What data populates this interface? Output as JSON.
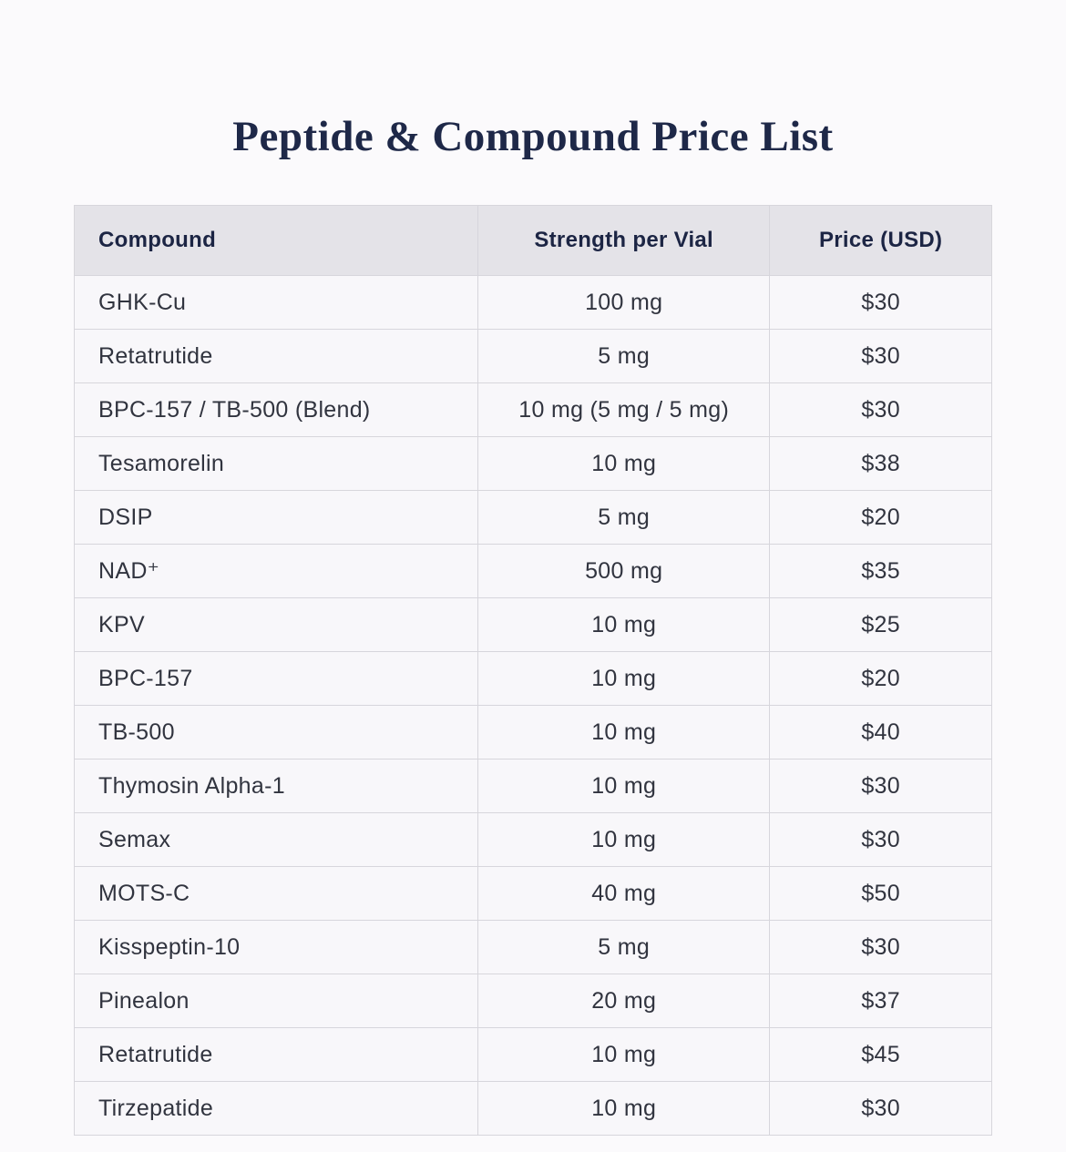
{
  "page": {
    "title": "Peptide & Compound Price List"
  },
  "table": {
    "columns": [
      "Compound",
      "Strength per Vial",
      "Price (USD)"
    ],
    "rows": [
      {
        "compound": "GHK-Cu",
        "strength": "100 mg",
        "price": "$30"
      },
      {
        "compound": "Retatrutide",
        "strength": "5 mg",
        "price": "$30"
      },
      {
        "compound": "BPC-157 / TB-500 (Blend)",
        "strength": "10 mg (5 mg / 5 mg)",
        "price": "$30"
      },
      {
        "compound": "Tesamorelin",
        "strength": "10 mg",
        "price": "$38"
      },
      {
        "compound": "DSIP",
        "strength": "5 mg",
        "price": "$20"
      },
      {
        "compound": "NAD⁺",
        "strength": "500 mg",
        "price": "$35"
      },
      {
        "compound": "KPV",
        "strength": "10 mg",
        "price": "$25"
      },
      {
        "compound": "BPC-157",
        "strength": "10 mg",
        "price": "$20"
      },
      {
        "compound": "TB-500",
        "strength": "10 mg",
        "price": "$40"
      },
      {
        "compound": "Thymosin Alpha-1",
        "strength": "10 mg",
        "price": "$30"
      },
      {
        "compound": "Semax",
        "strength": "10 mg",
        "price": "$30"
      },
      {
        "compound": "MOTS-C",
        "strength": "40 mg",
        "price": "$50"
      },
      {
        "compound": "Kisspeptin-10",
        "strength": "5 mg",
        "price": "$30"
      },
      {
        "compound": "Pinealon",
        "strength": "20 mg",
        "price": "$37"
      },
      {
        "compound": "Retatrutide",
        "strength": "10 mg",
        "price": "$45"
      },
      {
        "compound": "Tirzepatide",
        "strength": "10 mg",
        "price": "$30"
      }
    ]
  },
  "colors": {
    "page_bg": "#fbfafc",
    "title_text": "#1e2848",
    "header_bg": "#e4e3e8",
    "header_text": "#1c2544",
    "row_bg": "#f8f7fa",
    "body_text": "#31343f",
    "border": "#d7d6dc"
  }
}
